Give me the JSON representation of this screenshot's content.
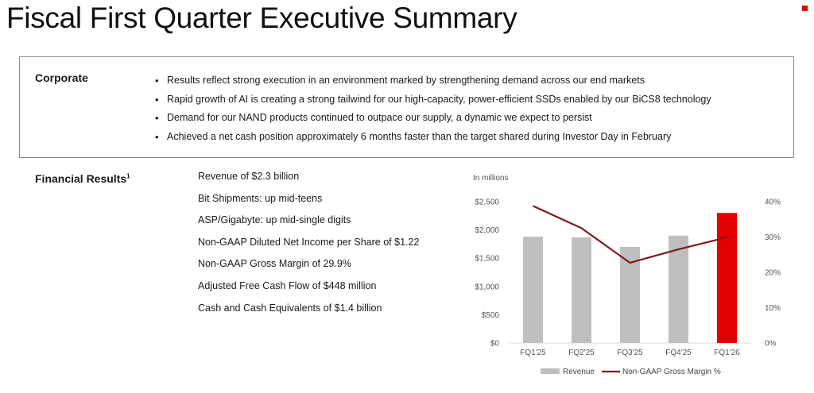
{
  "page": {
    "title": "Fiscal First Quarter Executive Summary"
  },
  "corporate": {
    "heading": "Corporate",
    "bullets": [
      "Results reflect strong execution in an environment marked by strengthening demand across our end markets",
      "Rapid growth of AI is creating a strong tailwind for our high-capacity, power-efficient SSDs enabled by our BiCS8 technology",
      "Demand for our NAND products continued to outpace our supply, a dynamic we expect to persist",
      "Achieved a net cash position approximately 6 months faster than the target shared during Investor Day in February"
    ]
  },
  "financial": {
    "heading": "Financial Results",
    "footnote": "1",
    "items": [
      "Revenue of $2.3 billion",
      "Bit Shipments: up mid-teens",
      "ASP/Gigabyte: up mid-single digits",
      "Non-GAAP Diluted Net Income per Share of $1.22",
      "Non-GAAP Gross Margin of 29.9%",
      "Adjusted Free Cash Flow of $448 million",
      "Cash and Cash Equivalents of $1.4 billion"
    ]
  },
  "chart_data": {
    "type": "bar",
    "unit_label": "In millions",
    "categories": [
      "FQ1'25",
      "FQ2'25",
      "FQ3'25",
      "FQ4'25",
      "FQ1'26"
    ],
    "series": [
      {
        "name": "Revenue",
        "type": "bar",
        "axis": "left",
        "values": [
          1880,
          1870,
          1700,
          1900,
          2300
        ],
        "colors": [
          "#bfbfbf",
          "#bfbfbf",
          "#bfbfbf",
          "#bfbfbf",
          "#e30000"
        ]
      },
      {
        "name": "Non-GAAP Gross Margin %",
        "type": "line",
        "axis": "right",
        "values": [
          38.8,
          32.5,
          22.7,
          26.5,
          29.9
        ],
        "color": "#7b1c1c"
      }
    ],
    "y_left": {
      "ticks": [
        "$0",
        "$500",
        "$1,000",
        "$1,500",
        "$2,000",
        "$2,500"
      ],
      "range": [
        0,
        2500
      ]
    },
    "y_right": {
      "ticks": [
        "0%",
        "10%",
        "20%",
        "30%",
        "40%"
      ],
      "range": [
        0,
        40
      ]
    },
    "legend": {
      "placement": "bottom"
    }
  }
}
